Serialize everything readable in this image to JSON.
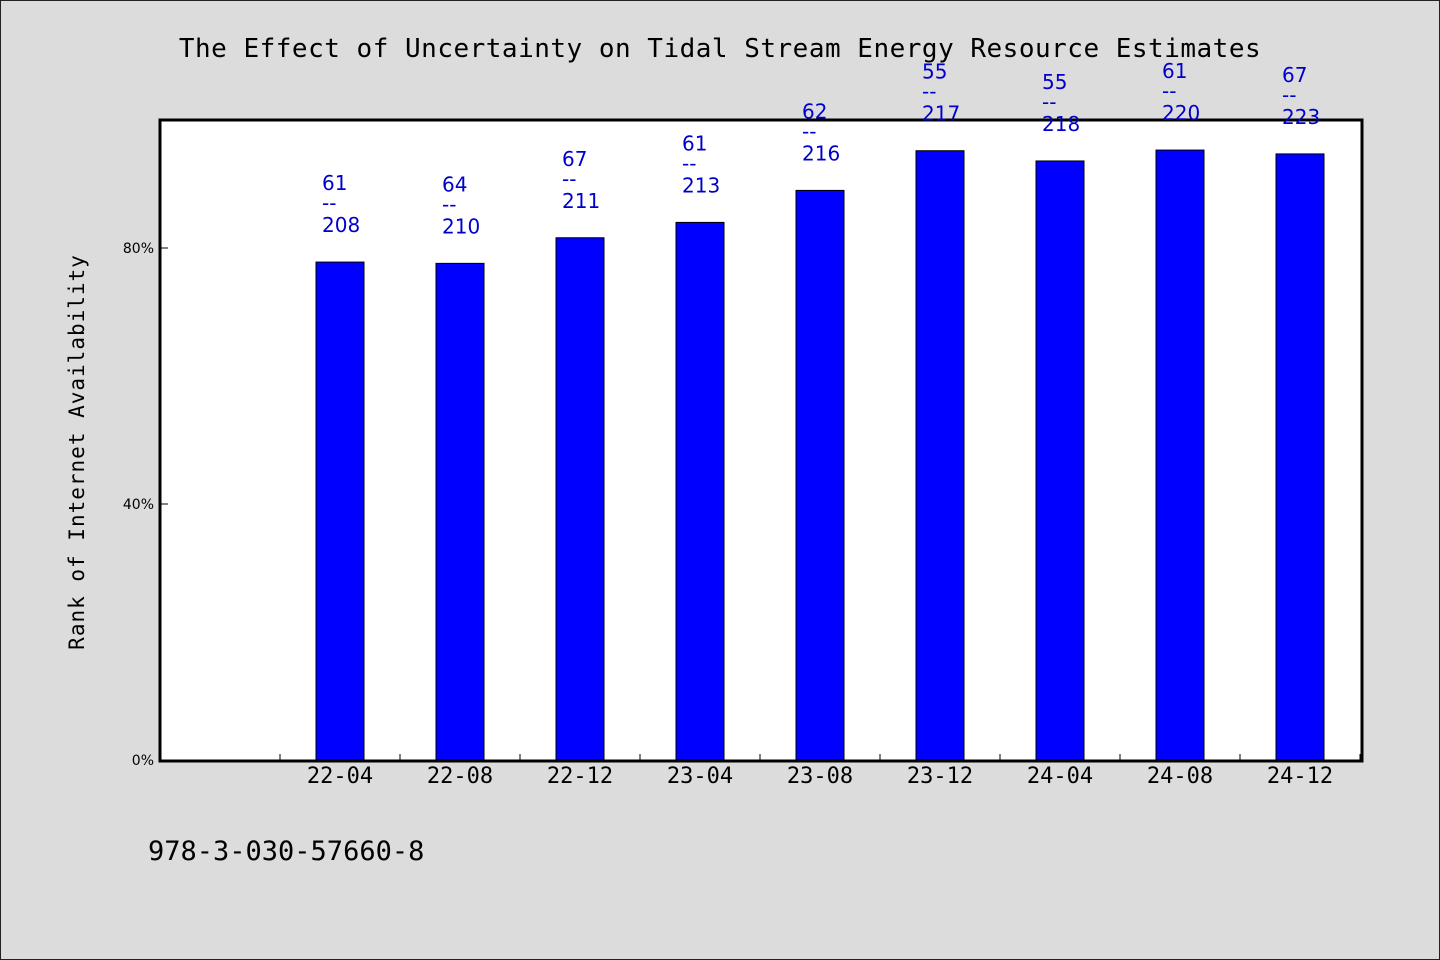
{
  "title": "The Effect of Uncertainty on Tidal Stream Energy Resource Estimates",
  "footer_code": "978-3-030-57660-8",
  "colors": {
    "background": "#dcdcdc",
    "plot_background": "#ffffff",
    "bar": "#0000ff",
    "data_label": "#0000cc"
  },
  "chart_data": {
    "type": "bar",
    "title": "The Effect of Uncertainty on Tidal Stream Energy Resource Estimates",
    "xlabel": "",
    "ylabel": "Rank of Internet Availability",
    "categories": [
      "22-04",
      "22-08",
      "22-12",
      "23-04",
      "23-08",
      "23-12",
      "24-04",
      "24-08",
      "24-12"
    ],
    "values": [
      77.8,
      77.6,
      81.6,
      84.0,
      89.0,
      95.2,
      93.6,
      95.3,
      94.7
    ],
    "data_labels": [
      {
        "top": "61",
        "mid": "--",
        "bottom": "208"
      },
      {
        "top": "64",
        "mid": "--",
        "bottom": "210"
      },
      {
        "top": "67",
        "mid": "--",
        "bottom": "211"
      },
      {
        "top": "61",
        "mid": "--",
        "bottom": "213"
      },
      {
        "top": "62",
        "mid": "--",
        "bottom": "216"
      },
      {
        "top": "55",
        "mid": "--",
        "bottom": "217"
      },
      {
        "top": "55",
        "mid": "--",
        "bottom": "218"
      },
      {
        "top": "61",
        "mid": "--",
        "bottom": "220"
      },
      {
        "top": "67",
        "mid": "--",
        "bottom": "223"
      }
    ],
    "yticks": [
      {
        "value": 0,
        "label": "0%"
      },
      {
        "value": 40,
        "label": "40%"
      },
      {
        "value": 80,
        "label": "80%"
      }
    ],
    "ylim": [
      0,
      100
    ],
    "grid": false,
    "legend": "none"
  }
}
